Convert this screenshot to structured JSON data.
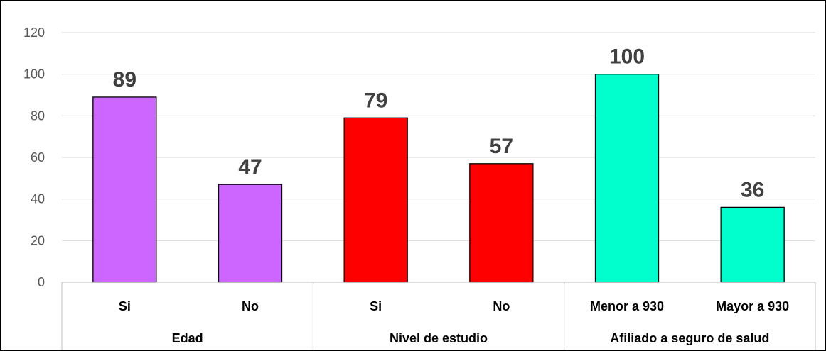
{
  "chart_data": {
    "type": "bar",
    "ylim": [
      0,
      120
    ],
    "yticks": [
      0,
      20,
      40,
      60,
      80,
      100,
      120
    ],
    "grid": true,
    "legend": "none",
    "groups": [
      {
        "name": "Edad",
        "color": "#cc66ff",
        "categories": [
          "Si",
          "No"
        ],
        "values": [
          89,
          47
        ]
      },
      {
        "name": "Nivel de estudio",
        "color": "#ff0000",
        "categories": [
          "Si",
          "No"
        ],
        "values": [
          79,
          57
        ]
      },
      {
        "name": "Afiliado a seguro de salud",
        "color": "#00ffcc",
        "categories": [
          "Menor a 930",
          "Mayor a 930"
        ],
        "values": [
          100,
          36
        ]
      }
    ]
  }
}
